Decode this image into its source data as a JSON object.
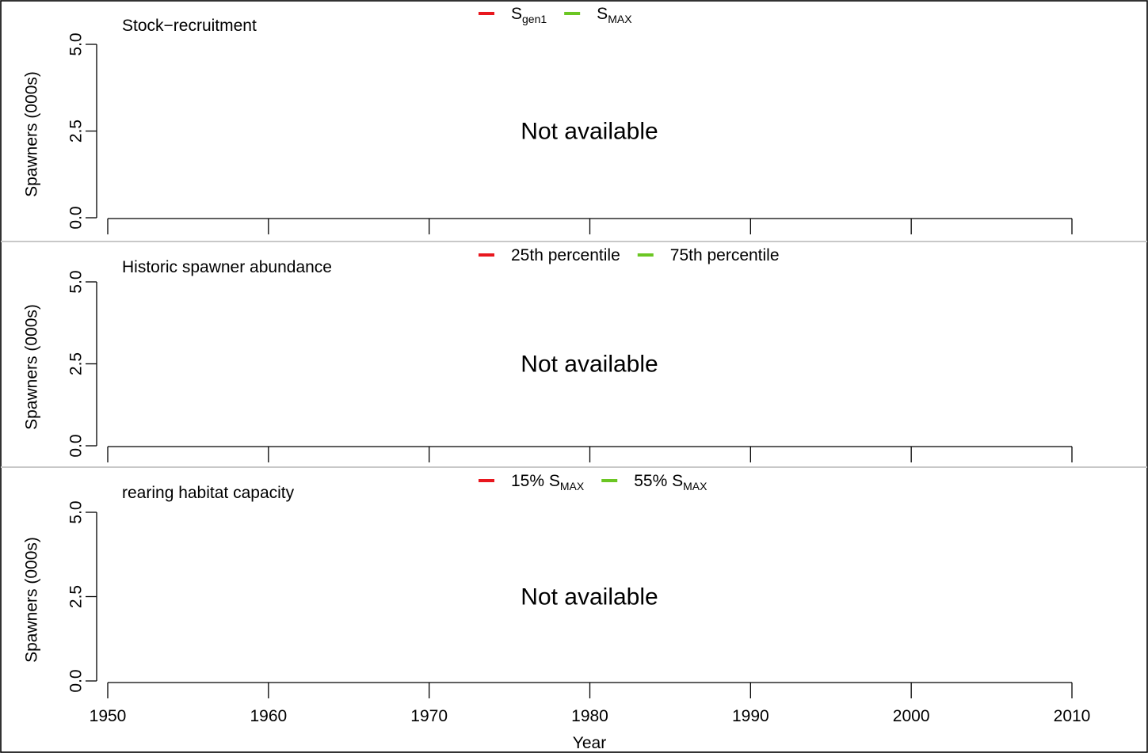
{
  "chart_data": [
    {
      "type": "line",
      "title": "Stock−recruitment",
      "ylabel": "Spawners (000s)",
      "xlabel": "",
      "xlim": [
        1950,
        2010
      ],
      "ylim": [
        0,
        5
      ],
      "x_ticks": [
        "1950",
        "1960",
        "1970",
        "1980",
        "1990",
        "2000",
        "2010"
      ],
      "y_ticks": [
        "0.0",
        "2.5",
        "5.0"
      ],
      "message": "Not available",
      "legend_position": "top",
      "legend": [
        {
          "base": "S",
          "sub": "gen1",
          "color": "#e8171e"
        },
        {
          "base": "S",
          "sub": "MAX",
          "color": "#6bc623"
        }
      ],
      "series": []
    },
    {
      "type": "line",
      "title": "Historic spawner abundance",
      "ylabel": "Spawners (000s)",
      "xlabel": "",
      "xlim": [
        1950,
        2010
      ],
      "ylim": [
        0,
        5
      ],
      "x_ticks": [
        "1950",
        "1960",
        "1970",
        "1980",
        "1990",
        "2000",
        "2010"
      ],
      "y_ticks": [
        "0.0",
        "2.5",
        "5.0"
      ],
      "message": "Not available",
      "legend_position": "top",
      "legend": [
        {
          "base": "25th percentile",
          "sub": "",
          "color": "#e8171e"
        },
        {
          "base": "75th percentile",
          "sub": "",
          "color": "#6bc623"
        }
      ],
      "series": []
    },
    {
      "type": "line",
      "title": "rearing habitat capacity",
      "ylabel": "Spawners (000s)",
      "xlabel": "Year",
      "xlim": [
        1950,
        2010
      ],
      "ylim": [
        0,
        5
      ],
      "x_ticks": [
        "1950",
        "1960",
        "1970",
        "1980",
        "1990",
        "2000",
        "2010"
      ],
      "y_ticks": [
        "0.0",
        "2.5",
        "5.0"
      ],
      "x_tick_labels_shown": true,
      "message": "Not available",
      "legend_position": "top",
      "legend": [
        {
          "base": "15% S",
          "sub": "MAX",
          "color": "#e8171e"
        },
        {
          "base": "55% S",
          "sub": "MAX",
          "color": "#6bc623"
        }
      ],
      "series": []
    }
  ]
}
